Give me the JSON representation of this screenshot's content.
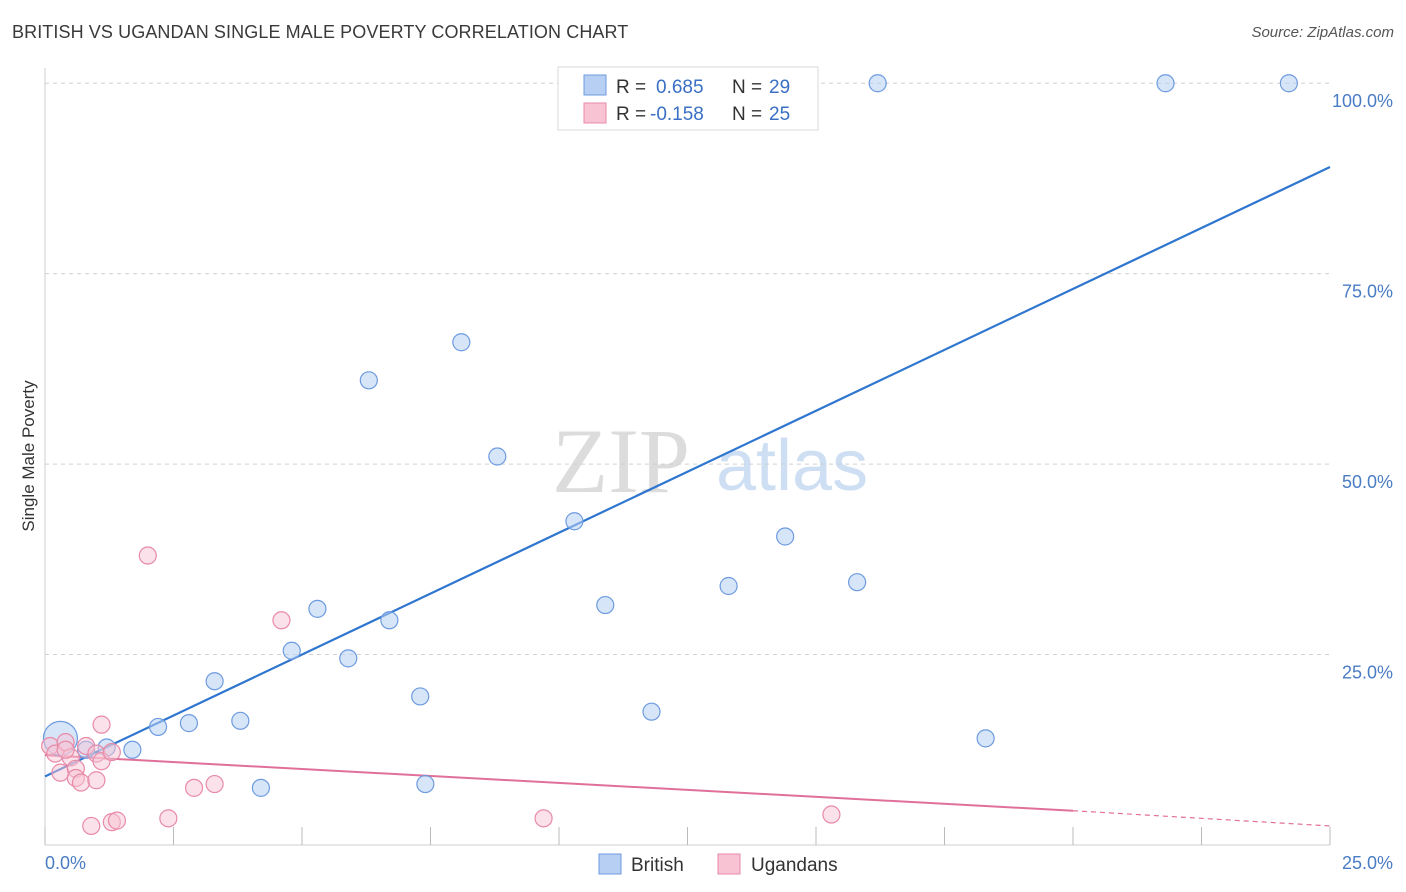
{
  "title": "BRITISH VS UGANDAN SINGLE MALE POVERTY CORRELATION CHART",
  "source": "Source: ZipAtlas.com",
  "watermark": {
    "zip": "ZIP",
    "atlas": "atlas"
  },
  "colors": {
    "british_fill": "#b7cff2",
    "british_stroke": "#6d9be0",
    "british_line": "#2f76d0",
    "ugandan_fill": "#f8c3d3",
    "ugandan_stroke": "#e88aa8",
    "ugandan_line": "#e0709a",
    "tick_label": "#4a7cc4",
    "grid": "#d0d0d0"
  },
  "legend": {
    "rows": [
      {
        "r_label": "R =",
        "r_value": "0.685",
        "n_label": "N =",
        "n_value": "29"
      },
      {
        "r_label": "R =",
        "r_value": "-0.158",
        "n_label": "N =",
        "n_value": "25"
      }
    ]
  },
  "bottom_legend": [
    "British",
    "Ugandans"
  ],
  "chart_data": {
    "type": "scatter",
    "title": "BRITISH VS UGANDAN SINGLE MALE POVERTY CORRELATION CHART",
    "xlabel": "",
    "ylabel": "Single Male Poverty",
    "xlim": [
      0,
      25
    ],
    "ylim": [
      0,
      102
    ],
    "x_tick_labels": [
      "0.0%",
      "25.0%"
    ],
    "y_ticks": [
      25,
      50,
      75,
      100
    ],
    "y_tick_labels": [
      "25.0%",
      "50.0%",
      "75.0%",
      "100.0%"
    ],
    "grid": "horizontal dashed",
    "legend_placement": "top-center",
    "series": [
      {
        "name": "British",
        "points": [
          {
            "x": 0.3,
            "y": 14.0,
            "size": "large"
          },
          {
            "x": 0.8,
            "y": 12.5
          },
          {
            "x": 1.2,
            "y": 12.8
          },
          {
            "x": 1.7,
            "y": 12.5
          },
          {
            "x": 2.2,
            "y": 15.5
          },
          {
            "x": 2.8,
            "y": 16.0
          },
          {
            "x": 3.3,
            "y": 21.5
          },
          {
            "x": 3.8,
            "y": 16.3
          },
          {
            "x": 4.2,
            "y": 7.5
          },
          {
            "x": 4.8,
            "y": 25.5
          },
          {
            "x": 5.3,
            "y": 31.0
          },
          {
            "x": 5.9,
            "y": 24.5
          },
          {
            "x": 6.3,
            "y": 61.0
          },
          {
            "x": 6.7,
            "y": 29.5
          },
          {
            "x": 7.3,
            "y": 19.5
          },
          {
            "x": 7.4,
            "y": 8.0
          },
          {
            "x": 8.1,
            "y": 66.0
          },
          {
            "x": 8.8,
            "y": 51.0
          },
          {
            "x": 10.3,
            "y": 42.5
          },
          {
            "x": 10.9,
            "y": 31.5
          },
          {
            "x": 11.8,
            "y": 17.5
          },
          {
            "x": 13.3,
            "y": 34.0
          },
          {
            "x": 14.4,
            "y": 40.5
          },
          {
            "x": 15.8,
            "y": 34.5
          },
          {
            "x": 16.2,
            "y": 100.0
          },
          {
            "x": 18.3,
            "y": 14.0
          },
          {
            "x": 21.8,
            "y": 100.0
          },
          {
            "x": 24.2,
            "y": 100.0
          },
          {
            "x": 12.0,
            "y": 100.0
          }
        ],
        "trendline": {
          "x": [
            0,
            25
          ],
          "y": [
            9.0,
            89.0
          ]
        }
      },
      {
        "name": "Ugandans",
        "points": [
          {
            "x": 0.1,
            "y": 13.0
          },
          {
            "x": 0.2,
            "y": 12.0
          },
          {
            "x": 0.3,
            "y": 9.5
          },
          {
            "x": 0.4,
            "y": 13.5
          },
          {
            "x": 0.5,
            "y": 11.5
          },
          {
            "x": 0.6,
            "y": 10.0
          },
          {
            "x": 0.6,
            "y": 8.8
          },
          {
            "x": 0.7,
            "y": 8.2
          },
          {
            "x": 0.8,
            "y": 13.0
          },
          {
            "x": 0.9,
            "y": 2.5
          },
          {
            "x": 1.0,
            "y": 12.0
          },
          {
            "x": 1.0,
            "y": 8.5
          },
          {
            "x": 1.1,
            "y": 11.0
          },
          {
            "x": 1.1,
            "y": 15.8
          },
          {
            "x": 1.3,
            "y": 12.2
          },
          {
            "x": 1.3,
            "y": 3.0
          },
          {
            "x": 1.4,
            "y": 3.2
          },
          {
            "x": 2.0,
            "y": 38.0
          },
          {
            "x": 2.4,
            "y": 3.5
          },
          {
            "x": 2.9,
            "y": 7.5
          },
          {
            "x": 3.3,
            "y": 8.0
          },
          {
            "x": 4.6,
            "y": 29.5
          },
          {
            "x": 9.7,
            "y": 3.5
          },
          {
            "x": 15.3,
            "y": 4.0
          },
          {
            "x": 0.4,
            "y": 12.5
          }
        ],
        "trendline": {
          "x": [
            0,
            20
          ],
          "y": [
            11.8,
            4.5
          ],
          "dashed_to": {
            "x": 25,
            "y": 2.5
          }
        }
      }
    ]
  }
}
